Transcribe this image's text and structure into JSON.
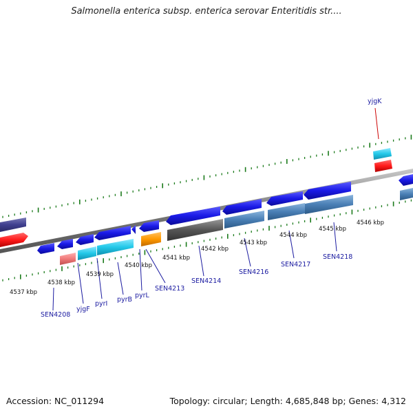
{
  "title": "Salmonella enterica subsp. enterica serovar Enteritidis str....",
  "footer": {
    "accession_label": "Accession:",
    "accession": "NC_011294",
    "topology_text": "Topology: circular; Length: 4,685,848 bp; Genes: 4,312"
  },
  "ticks": [
    {
      "kb": 4537,
      "label": "4537 kbp"
    },
    {
      "kb": 4538,
      "label": "4538 kbp"
    },
    {
      "kb": 4539,
      "label": "4539 kbp"
    },
    {
      "kb": 4540,
      "label": "4540 kbp"
    },
    {
      "kb": 4541,
      "label": "4541 kbp"
    },
    {
      "kb": 4542,
      "label": "4542 kbp"
    },
    {
      "kb": 4543,
      "label": "4543 kbp"
    },
    {
      "kb": 4544,
      "label": "4544 kbp"
    },
    {
      "kb": 4545,
      "label": "4545 kbp"
    },
    {
      "kb": 4546,
      "label": "4546 kbp"
    }
  ],
  "gene_labels": [
    {
      "name": "SEN4208",
      "color": "#1a1aa0"
    },
    {
      "name": "yjgF",
      "color": "#1a1aa0"
    },
    {
      "name": "pyrI",
      "color": "#1a1aa0"
    },
    {
      "name": "pyrB",
      "color": "#1a1aa0"
    },
    {
      "name": "pyrL",
      "color": "#1a1aa0"
    },
    {
      "name": "SEN4213",
      "color": "#1a1aa0"
    },
    {
      "name": "SEN4214",
      "color": "#1a1aa0"
    },
    {
      "name": "SEN4216",
      "color": "#1a1aa0"
    },
    {
      "name": "SEN4217",
      "color": "#1a1aa0"
    },
    {
      "name": "SEN4218",
      "color": "#1a1aa0"
    },
    {
      "name": "yjgK",
      "color": "#cc0000"
    }
  ],
  "colors": {
    "cds_blue": "#1a1ae6",
    "gene_red": "#ff1a1a",
    "rna_cyan": "#22c8e8",
    "steel_blue": "#4a7fb5",
    "dark_gray": "#555555",
    "orange": "#ff9900",
    "pink": "#f07a7a",
    "purple": "#3f3f8f",
    "tick_green": "#1a7a1a",
    "backbone": "#888888"
  }
}
